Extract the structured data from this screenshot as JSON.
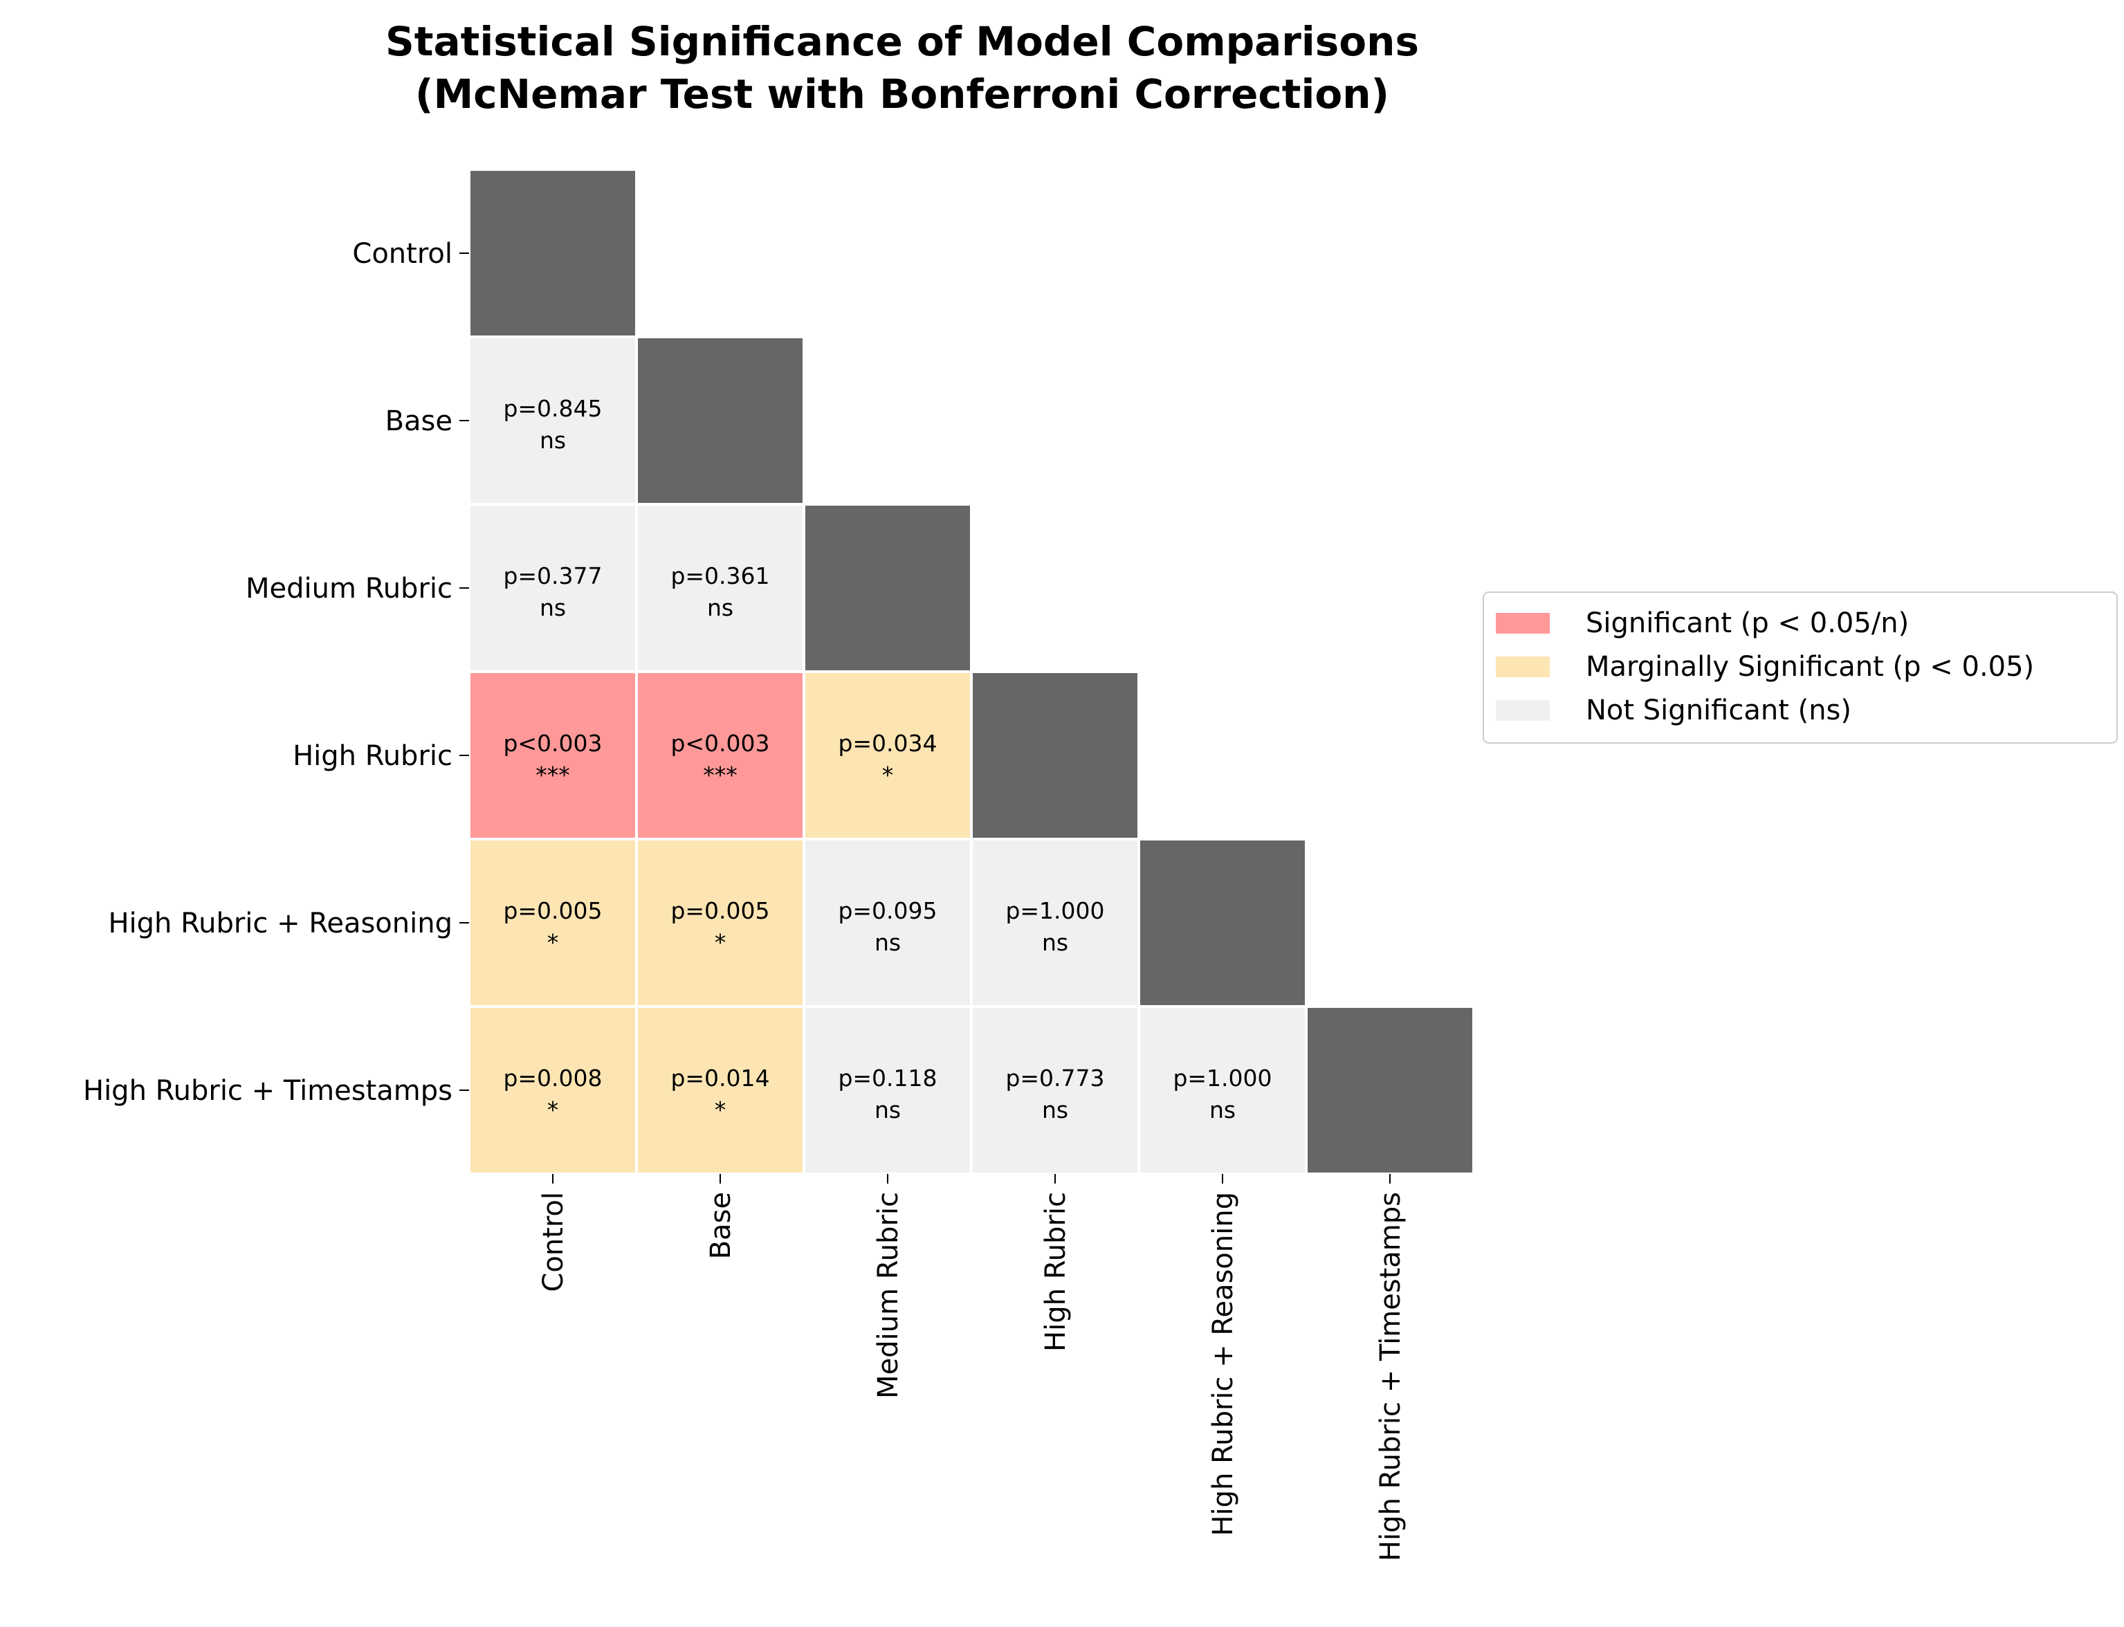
{
  "chart_data": {
    "type": "heatmap",
    "title": "Statistical Significance of Model Comparisons",
    "subtitle": "(McNemar Test with Bonferroni Correction)",
    "row_labels": [
      "Control",
      "Base",
      "Medium Rubric",
      "High Rubric",
      "High Rubric + Reasoning",
      "High Rubric + Timestamps"
    ],
    "col_labels": [
      "Control",
      "Base",
      "Medium Rubric",
      "High Rubric",
      "High Rubric + Reasoning",
      "High Rubric + Timestamps"
    ],
    "cells": [
      {
        "row": 0,
        "col": 0,
        "category": "diagonal"
      },
      {
        "row": 1,
        "col": 0,
        "p": "p=0.845",
        "sig": "ns",
        "category": "ns"
      },
      {
        "row": 1,
        "col": 1,
        "category": "diagonal"
      },
      {
        "row": 2,
        "col": 0,
        "p": "p=0.377",
        "sig": "ns",
        "category": "ns"
      },
      {
        "row": 2,
        "col": 1,
        "p": "p=0.361",
        "sig": "ns",
        "category": "ns"
      },
      {
        "row": 2,
        "col": 2,
        "category": "diagonal"
      },
      {
        "row": 3,
        "col": 0,
        "p": "p<0.003",
        "sig": "***",
        "category": "significant"
      },
      {
        "row": 3,
        "col": 1,
        "p": "p<0.003",
        "sig": "***",
        "category": "significant"
      },
      {
        "row": 3,
        "col": 2,
        "p": "p=0.034",
        "sig": "*",
        "category": "marginal"
      },
      {
        "row": 3,
        "col": 3,
        "category": "diagonal"
      },
      {
        "row": 4,
        "col": 0,
        "p": "p=0.005",
        "sig": "*",
        "category": "marginal"
      },
      {
        "row": 4,
        "col": 1,
        "p": "p=0.005",
        "sig": "*",
        "category": "marginal"
      },
      {
        "row": 4,
        "col": 2,
        "p": "p=0.095",
        "sig": "ns",
        "category": "ns"
      },
      {
        "row": 4,
        "col": 3,
        "p": "p=1.000",
        "sig": "ns",
        "category": "ns"
      },
      {
        "row": 4,
        "col": 4,
        "category": "diagonal"
      },
      {
        "row": 5,
        "col": 0,
        "p": "p=0.008",
        "sig": "*",
        "category": "marginal"
      },
      {
        "row": 5,
        "col": 1,
        "p": "p=0.014",
        "sig": "*",
        "category": "marginal"
      },
      {
        "row": 5,
        "col": 2,
        "p": "p=0.118",
        "sig": "ns",
        "category": "ns"
      },
      {
        "row": 5,
        "col": 3,
        "p": "p=0.773",
        "sig": "ns",
        "category": "ns"
      },
      {
        "row": 5,
        "col": 4,
        "p": "p=1.000",
        "sig": "ns",
        "category": "ns"
      },
      {
        "row": 5,
        "col": 5,
        "category": "diagonal"
      }
    ],
    "colors": {
      "significant": "#ff9999",
      "marginal": "#fde5b3",
      "ns": "#f0f0f0",
      "diagonal": "#666666",
      "cell_border": "#ffffff"
    },
    "legend": {
      "placement": "right",
      "items": [
        {
          "label": "Significant (p < 0.05/n)",
          "category": "significant"
        },
        {
          "label": "Marginally Significant (p < 0.05)",
          "category": "marginal"
        },
        {
          "label": "Not Significant (ns)",
          "category": "ns"
        }
      ]
    }
  }
}
